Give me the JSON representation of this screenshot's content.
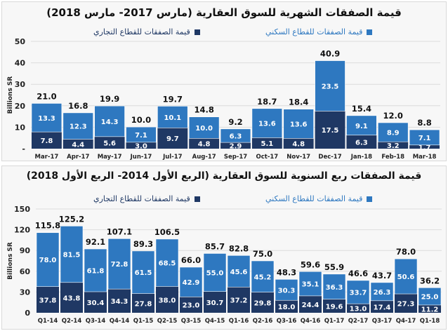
{
  "colors": {
    "residential": "#2e78c0",
    "commercial": "#1f3864"
  },
  "chart_data": [
    {
      "type": "bar",
      "stacked": true,
      "title": "قيمة الصفقات الشهرية للسوق العقارية (مارس 2017- مارس 2018)",
      "ylabel": "Billions SR",
      "ylim": [
        0,
        50
      ],
      "yticks": [
        "-",
        "10",
        "20",
        "30",
        "40",
        "50"
      ],
      "grid": true,
      "legend": "top",
      "categories": [
        "Mar-17",
        "Apr-17",
        "May-17",
        "Jun-17",
        "Jul-17",
        "Aug-17",
        "Sep-17",
        "Oct-17",
        "Nov-17",
        "Dec-17",
        "Jan-18",
        "Feb-18",
        "Mar-18"
      ],
      "series": [
        {
          "name": "قيمة الصفقات للقطاع التجاري",
          "values": [
            7.8,
            4.4,
            5.6,
            3.0,
            9.7,
            4.8,
            2.9,
            5.1,
            4.8,
            17.5,
            6.3,
            3.2,
            1.7
          ]
        },
        {
          "name": "قيمة الصفقات للقطاع السكني",
          "values": [
            13.3,
            12.3,
            14.3,
            7.1,
            10.1,
            10.0,
            6.3,
            13.6,
            13.6,
            23.5,
            9.1,
            8.9,
            7.1
          ]
        }
      ],
      "totals": [
        "21.0",
        "16.8",
        "19.9",
        "10.0",
        "19.7",
        "14.8",
        "9.2",
        "18.7",
        "18.4",
        "40.9",
        "15.4",
        "12.0",
        "8.8"
      ]
    },
    {
      "type": "bar",
      "stacked": true,
      "title": "قيمة الصفقات ربع السنوية للسوق العقارية (الربع الأول 2014- الربع الأول 2018)",
      "ylabel": "Billions SR",
      "ylim": [
        0,
        150
      ],
      "yticks": [
        "0",
        "30",
        "60",
        "90",
        "120",
        "150"
      ],
      "grid": true,
      "legend": "top",
      "categories": [
        "Q1-14",
        "Q2-14",
        "Q3-14",
        "Q4-14",
        "Q1-15",
        "Q2-15",
        "Q3-15",
        "Q4-15",
        "Q1-16",
        "Q2-16",
        "Q3-16",
        "Q4-16",
        "Q1-17",
        "Q2-17",
        "Q3-17",
        "Q4-17",
        "Q1-18"
      ],
      "series": [
        {
          "name": "قيمة الصفقات للقطاع التجاري",
          "values": [
            37.8,
            43.8,
            30.4,
            34.3,
            27.8,
            38.0,
            23.0,
            30.7,
            37.2,
            29.8,
            18.0,
            24.4,
            19.6,
            13.0,
            17.4,
            27.3,
            11.2
          ]
        },
        {
          "name": "قيمة الصفقات للقطاع السكني",
          "values": [
            78.0,
            81.5,
            61.8,
            72.8,
            61.5,
            68.5,
            42.9,
            55.0,
            45.6,
            45.2,
            30.3,
            35.1,
            36.3,
            33.7,
            26.3,
            50.6,
            25.0
          ]
        }
      ],
      "totals": [
        "115.8",
        "125.2",
        "92.1",
        "107.1",
        "89.3",
        "106.5",
        "66.0",
        "85.7",
        "82.8",
        "75.0",
        "48.3",
        "59.6",
        "55.9",
        "46.6",
        "43.7",
        "78.0",
        "36.2"
      ]
    }
  ]
}
